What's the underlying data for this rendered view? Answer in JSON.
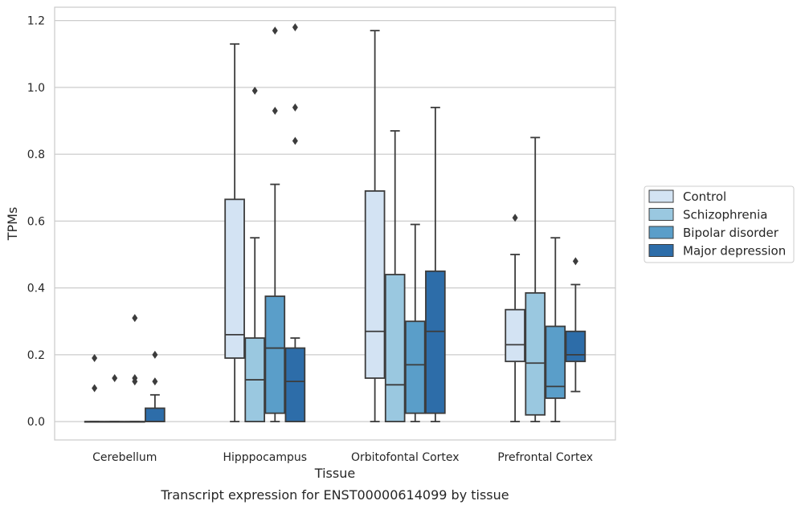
{
  "chart_data": {
    "type": "box",
    "xlabel": "Tissue",
    "ylabel": "TPMs",
    "caption": "Transcript expression for ENST00000614099 by tissue",
    "ylim": [
      -0.055,
      1.24
    ],
    "yticks": [
      "0.0",
      "0.2",
      "0.4",
      "0.6",
      "0.8",
      "1.0",
      "1.2"
    ],
    "ytick_values": [
      0.0,
      0.2,
      0.4,
      0.6,
      0.8,
      1.0,
      1.2
    ],
    "grid": "horizontal",
    "legend_position": "outside-right",
    "categories": [
      "Cerebellum",
      "Hipppocampus",
      "Orbitofontal Cortex",
      "Prefrontal Cortex"
    ],
    "series": [
      {
        "name": "Control",
        "color": "#d3e3f3",
        "boxes": [
          {
            "q1": 0.0,
            "median": 0.0,
            "q3": 0.0,
            "whislo": 0.0,
            "whishi": 0.0,
            "fliers": [
              0.19,
              0.1
            ]
          },
          {
            "q1": 0.19,
            "median": 0.26,
            "q3": 0.665,
            "whislo": 0.0,
            "whishi": 1.13,
            "fliers": []
          },
          {
            "q1": 0.13,
            "median": 0.27,
            "q3": 0.69,
            "whislo": 0.0,
            "whishi": 1.17,
            "fliers": []
          },
          {
            "q1": 0.18,
            "median": 0.23,
            "q3": 0.335,
            "whislo": 0.0,
            "whishi": 0.5,
            "fliers": [
              0.61
            ]
          }
        ]
      },
      {
        "name": "Schizophrenia",
        "color": "#9ac8e0",
        "boxes": [
          {
            "q1": 0.0,
            "median": 0.0,
            "q3": 0.0,
            "whislo": 0.0,
            "whishi": 0.0,
            "fliers": [
              0.13
            ]
          },
          {
            "q1": 0.0,
            "median": 0.125,
            "q3": 0.25,
            "whislo": 0.0,
            "whishi": 0.55,
            "fliers": [
              0.99
            ]
          },
          {
            "q1": 0.0,
            "median": 0.11,
            "q3": 0.44,
            "whislo": 0.0,
            "whishi": 0.87,
            "fliers": []
          },
          {
            "q1": 0.02,
            "median": 0.175,
            "q3": 0.385,
            "whislo": 0.0,
            "whishi": 0.85,
            "fliers": []
          }
        ]
      },
      {
        "name": "Bipolar disorder",
        "color": "#5a9ec9",
        "boxes": [
          {
            "q1": 0.0,
            "median": 0.0,
            "q3": 0.0,
            "whislo": 0.0,
            "whishi": 0.0,
            "fliers": [
              0.31,
              0.13,
              0.12
            ]
          },
          {
            "q1": 0.025,
            "median": 0.22,
            "q3": 0.375,
            "whislo": 0.0,
            "whishi": 0.71,
            "fliers": [
              1.17,
              0.93
            ]
          },
          {
            "q1": 0.025,
            "median": 0.17,
            "q3": 0.3,
            "whislo": 0.0,
            "whishi": 0.59,
            "fliers": []
          },
          {
            "q1": 0.07,
            "median": 0.105,
            "q3": 0.285,
            "whislo": 0.0,
            "whishi": 0.55,
            "fliers": []
          }
        ]
      },
      {
        "name": "Major depression",
        "color": "#2d6da9",
        "boxes": [
          {
            "q1": 0.0,
            "median": 0.0,
            "q3": 0.04,
            "whislo": 0.0,
            "whishi": 0.08,
            "fliers": [
              0.2,
              0.12
            ]
          },
          {
            "q1": 0.0,
            "median": 0.12,
            "q3": 0.22,
            "whislo": 0.0,
            "whishi": 0.25,
            "fliers": [
              1.18,
              0.94,
              0.84
            ]
          },
          {
            "q1": 0.025,
            "median": 0.27,
            "q3": 0.45,
            "whislo": 0.0,
            "whishi": 0.94,
            "fliers": []
          },
          {
            "q1": 0.18,
            "median": 0.2,
            "q3": 0.27,
            "whislo": 0.09,
            "whishi": 0.41,
            "fliers": [
              0.48
            ]
          }
        ]
      }
    ]
  }
}
